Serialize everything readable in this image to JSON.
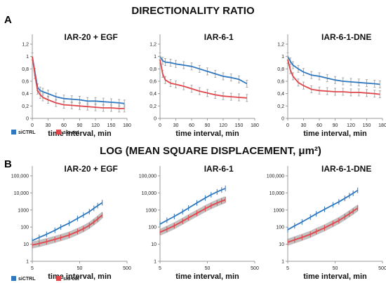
{
  "figure": {
    "title_a": "DIRECTIONALITY RATIO",
    "title_b": "LOG (MEAN SQUARE DISPLACEMENT, μm²)",
    "panel_a": "A",
    "panel_b": "B"
  },
  "legend": {
    "a": [
      "siCTRL",
      "siα-cat"
    ],
    "b": [
      "siCTRL",
      "siα-cat"
    ]
  },
  "colors": {
    "ctrl": "#2f77bf",
    "cat": "#e0474c",
    "err": "#aaaaaa",
    "band": "#8c8c8c"
  },
  "chart_data": [
    {
      "type": "line",
      "title": "IAR-20 + EGF",
      "xlabel": "time interval, min",
      "ylabel": "",
      "xlim": [
        0,
        180
      ],
      "ylim": [
        0,
        1.2
      ],
      "xticks": [
        "0",
        "30",
        "60",
        "90",
        "120",
        "150",
        "180"
      ],
      "yticks": [
        "0",
        "0,2",
        "0,4",
        "0,6",
        "0,8",
        "1",
        "1,2"
      ],
      "x": [
        0,
        5,
        10,
        15,
        20,
        30,
        45,
        60,
        75,
        90,
        105,
        120,
        135,
        150,
        165,
        175
      ],
      "series": [
        {
          "name": "siCTRL",
          "values": [
            1.0,
            0.75,
            0.5,
            0.45,
            0.43,
            0.4,
            0.35,
            0.32,
            0.31,
            0.3,
            0.28,
            0.28,
            0.27,
            0.26,
            0.25,
            0.24
          ]
        },
        {
          "name": "siα-cat",
          "values": [
            1.0,
            0.7,
            0.45,
            0.38,
            0.34,
            0.3,
            0.25,
            0.22,
            0.21,
            0.2,
            0.19,
            0.18,
            0.17,
            0.17,
            0.16,
            0.16
          ]
        }
      ]
    },
    {
      "type": "line",
      "title": "IAR-6-1",
      "xlabel": "time interval, min",
      "ylabel": "",
      "xlim": [
        0,
        180
      ],
      "ylim": [
        0,
        1.2
      ],
      "xticks": [
        "0",
        "30",
        "60",
        "90",
        "120",
        "150",
        "180"
      ],
      "yticks": [
        "0",
        "0,2",
        "0,4",
        "0,6",
        "0,8",
        "1",
        "1,2"
      ],
      "x": [
        0,
        5,
        10,
        20,
        30,
        45,
        60,
        75,
        90,
        105,
        120,
        135,
        150,
        165
      ],
      "series": [
        {
          "name": "siCTRL",
          "values": [
            1.0,
            0.93,
            0.91,
            0.9,
            0.88,
            0.86,
            0.84,
            0.8,
            0.76,
            0.72,
            0.68,
            0.66,
            0.63,
            0.56
          ]
        },
        {
          "name": "siα-cat",
          "values": [
            0.95,
            0.72,
            0.62,
            0.57,
            0.55,
            0.52,
            0.48,
            0.44,
            0.41,
            0.38,
            0.36,
            0.35,
            0.34,
            0.33
          ]
        }
      ]
    },
    {
      "type": "line",
      "title": "IAR-6-1-DNE",
      "xlabel": "time interval, min",
      "ylabel": "",
      "xlim": [
        0,
        180
      ],
      "ylim": [
        0,
        1.2
      ],
      "xticks": [
        "0",
        "30",
        "60",
        "90",
        "120",
        "150",
        "180"
      ],
      "yticks": [
        "0",
        "0,2",
        "0,4",
        "0,6",
        "0,8",
        "1",
        "1,2"
      ],
      "x": [
        0,
        5,
        10,
        20,
        30,
        45,
        60,
        75,
        90,
        105,
        120,
        135,
        150,
        165,
        175
      ],
      "series": [
        {
          "name": "siCTRL",
          "values": [
            1.0,
            0.92,
            0.86,
            0.8,
            0.75,
            0.7,
            0.68,
            0.65,
            0.62,
            0.6,
            0.59,
            0.58,
            0.57,
            0.56,
            0.55
          ]
        },
        {
          "name": "siα-cat",
          "values": [
            0.95,
            0.78,
            0.68,
            0.58,
            0.53,
            0.47,
            0.45,
            0.44,
            0.43,
            0.43,
            0.42,
            0.42,
            0.41,
            0.4,
            0.39
          ]
        }
      ]
    },
    {
      "type": "line",
      "title": "IAR-20 + EGF",
      "xlabel": "time interval, min",
      "ylabel": "",
      "xscale": "log",
      "yscale": "log",
      "xlim": [
        5,
        500
      ],
      "ylim": [
        1,
        100000
      ],
      "xticks": [
        "5",
        "50",
        "500"
      ],
      "yticks": [
        "1",
        "10",
        "100",
        "1000",
        "10,000",
        "100,000"
      ],
      "x": [
        5,
        7,
        10,
        15,
        20,
        30,
        45,
        60,
        80,
        100,
        120,
        150
      ],
      "series": [
        {
          "name": "siCTRL",
          "values": [
            16,
            25,
            38,
            65,
            100,
            170,
            320,
            500,
            800,
            1250,
            1800,
            2700
          ]
        },
        {
          "name": "siα-cat",
          "values": [
            9,
            11,
            14,
            19,
            24,
            34,
            55,
            80,
            125,
            200,
            300,
            500
          ]
        }
      ]
    },
    {
      "type": "line",
      "title": "IAR-6-1",
      "xlabel": "time interval, min",
      "ylabel": "",
      "xscale": "log",
      "yscale": "log",
      "xlim": [
        5,
        500
      ],
      "ylim": [
        1,
        100000
      ],
      "xticks": [
        "5",
        "50",
        "500"
      ],
      "yticks": [
        "1",
        "10",
        "100",
        "1000",
        "10,000",
        "100,000"
      ],
      "x": [
        5,
        7,
        10,
        15,
        20,
        30,
        45,
        60,
        80,
        100,
        120
      ],
      "series": [
        {
          "name": "siCTRL",
          "values": [
            150,
            250,
            420,
            800,
            1300,
            2600,
            5000,
            7800,
            11500,
            15000,
            18500
          ]
        },
        {
          "name": "siα-cat",
          "values": [
            50,
            75,
            120,
            220,
            350,
            650,
            1200,
            1800,
            2600,
            3300,
            4000
          ]
        }
      ]
    },
    {
      "type": "line",
      "title": "IAR-6-1-DNE",
      "xlabel": "time interval, min",
      "ylabel": "",
      "xscale": "log",
      "yscale": "log",
      "xlim": [
        5,
        500
      ],
      "ylim": [
        1,
        100000
      ],
      "xticks": [
        "5",
        "50",
        "500"
      ],
      "yticks": [
        "1",
        "10",
        "100",
        "1000",
        "10,000",
        "100,000"
      ],
      "x": [
        5,
        7,
        10,
        15,
        20,
        30,
        45,
        60,
        80,
        100,
        120,
        150
      ],
      "series": [
        {
          "name": "siCTRL",
          "values": [
            70,
            120,
            200,
            380,
            600,
            1100,
            2000,
            3000,
            4800,
            7000,
            9500,
            14000
          ]
        },
        {
          "name": "siα-cat",
          "values": [
            13,
            18,
            25,
            38,
            55,
            90,
            160,
            240,
            400,
            600,
            850,
            1300
          ]
        }
      ]
    }
  ]
}
